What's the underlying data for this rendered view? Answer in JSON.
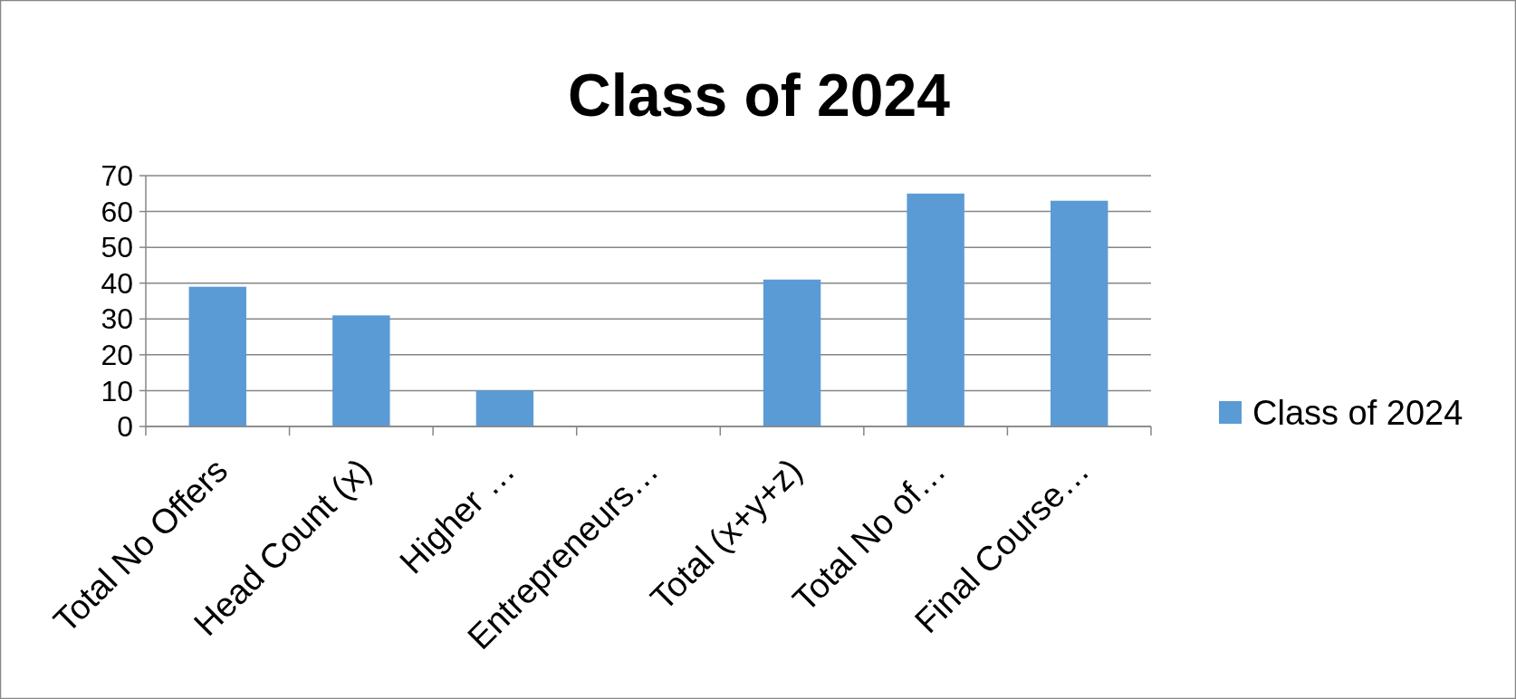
{
  "chart_data": {
    "type": "bar",
    "title": "Class of 2024",
    "categories": [
      "Total No Offers",
      "Head Count (x)",
      "Higher …",
      "Entrepreneurs…",
      "Total (x+y+z)",
      "Total No of…",
      "Final Course…"
    ],
    "series": [
      {
        "name": "Class of 2024",
        "color": "#5b9bd5",
        "values": [
          39,
          31,
          10,
          0,
          41,
          65,
          63
        ]
      }
    ],
    "ylim": [
      0,
      70
    ],
    "yticks": [
      0,
      10,
      20,
      30,
      40,
      50,
      60,
      70
    ],
    "grid": "y",
    "legend": "right"
  }
}
